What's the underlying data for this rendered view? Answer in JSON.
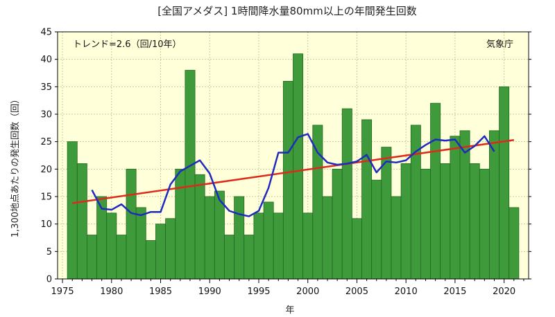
{
  "chart_data": {
    "type": "bar",
    "title": "[全国アメダス] 1時間降水量80mm以上の年間発生回数",
    "xlabel": "年",
    "ylabel": "1,300地点あたりの発生回数（回）",
    "trend_text": "トレンド=2.6（回/10年）",
    "source": "気象庁",
    "xlim": [
      1974.5,
      2022.5
    ],
    "ylim": [
      0,
      45
    ],
    "yticks": [
      0,
      5,
      10,
      15,
      20,
      25,
      30,
      35,
      40,
      45
    ],
    "xticks": [
      1975,
      1980,
      1985,
      1990,
      1995,
      2000,
      2005,
      2010,
      2015,
      2020
    ],
    "grid": true,
    "x": [
      1976,
      1977,
      1978,
      1979,
      1980,
      1981,
      1982,
      1983,
      1984,
      1985,
      1986,
      1987,
      1988,
      1989,
      1990,
      1991,
      1992,
      1993,
      1994,
      1995,
      1996,
      1997,
      1998,
      1999,
      2000,
      2001,
      2002,
      2003,
      2004,
      2005,
      2006,
      2007,
      2008,
      2009,
      2010,
      2011,
      2012,
      2013,
      2014,
      2015,
      2016,
      2017,
      2018,
      2019,
      2020,
      2021
    ],
    "values": [
      25,
      21,
      8,
      15,
      12,
      8,
      20,
      13,
      7,
      10,
      11,
      20,
      38,
      19,
      15,
      16,
      8,
      15,
      8,
      12,
      14,
      12,
      36,
      41,
      12,
      28,
      15,
      20,
      31,
      11,
      29,
      18,
      24,
      15,
      21,
      28,
      20,
      32,
      21,
      26,
      27,
      21,
      20,
      27,
      35,
      13
    ],
    "moving_average": {
      "x": [
        1978,
        1979,
        1980,
        1981,
        1982,
        1983,
        1984,
        1985,
        1986,
        1987,
        1988,
        1989,
        1990,
        1991,
        1992,
        1993,
        1994,
        1995,
        1996,
        1997,
        1998,
        1999,
        2000,
        2001,
        2002,
        2003,
        2004,
        2005,
        2006,
        2007,
        2008,
        2009,
        2010,
        2011,
        2012,
        2013,
        2014,
        2015,
        2016,
        2017,
        2018,
        2019
      ],
      "values": [
        16.2,
        12.8,
        12.6,
        13.6,
        12.0,
        11.6,
        12.2,
        12.2,
        17.2,
        19.6,
        20.6,
        21.6,
        19.2,
        14.4,
        12.4,
        11.8,
        11.4,
        12.4,
        16.6,
        23.0,
        23.0,
        25.8,
        26.4,
        23.0,
        21.2,
        20.8,
        21.0,
        21.4,
        22.6,
        19.4,
        21.4,
        21.2,
        21.6,
        23.2,
        24.4,
        25.4,
        25.2,
        25.4,
        23.0,
        24.2,
        26.0,
        23.2
      ]
    },
    "trend_line": {
      "x": [
        1976,
        2021
      ],
      "values": [
        13.8,
        25.3
      ]
    },
    "colors": {
      "bar_fill": "#3e9a3a",
      "bar_stroke": "#1e6a1e",
      "plot_bg": "#ffffd9",
      "moving_average": "#1f2bbf",
      "trend": "#dd2a1b",
      "grid": "#c9c9a0"
    }
  }
}
